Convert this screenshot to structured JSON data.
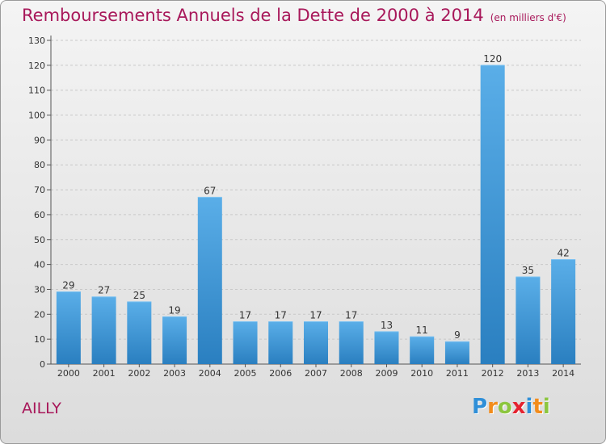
{
  "title": "Remboursements Annuels de la Dette de 2000 à 2014",
  "unit_note": "(en milliers d'€)",
  "commune": "AILLY",
  "logo": {
    "letters": [
      "P",
      "r",
      "o",
      "x",
      "i",
      "t",
      "i"
    ],
    "colors": [
      "#2f8fd8",
      "#f28c1c",
      "#8cc63f",
      "#e5222f",
      "#2f8fd8",
      "#f28c1c",
      "#8cc63f"
    ]
  },
  "colors": {
    "bar_top": "#5aaee8",
    "bar_bottom": "#2a7fc0",
    "title": "#a8185a",
    "grid": "#c8c8c8"
  },
  "chart_data": {
    "type": "bar",
    "categories": [
      "2000",
      "2001",
      "2002",
      "2003",
      "2004",
      "2005",
      "2006",
      "2007",
      "2008",
      "2009",
      "2010",
      "2011",
      "2012",
      "2013",
      "2014"
    ],
    "values": [
      29,
      27,
      25,
      19,
      67,
      17,
      17,
      17,
      17,
      13,
      11,
      9,
      120,
      35,
      42
    ],
    "yticks": [
      0,
      10,
      20,
      30,
      40,
      50,
      60,
      70,
      80,
      90,
      100,
      110,
      120,
      130
    ],
    "ylim": [
      0,
      130
    ],
    "grid": true,
    "data_labels": true
  }
}
